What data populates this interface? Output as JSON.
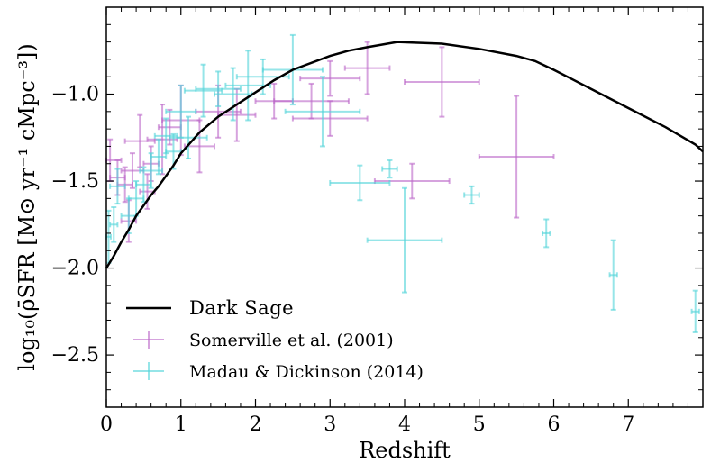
{
  "chart_data": {
    "type": "scatter",
    "xlabel": "Redshift",
    "ylabel": "log₁₀(ρ̄SFR [M⊙ yr⁻¹ cMpc⁻³])",
    "xlim": [
      0,
      8
    ],
    "ylim": [
      -2.8,
      -0.5
    ],
    "x_ticks": [
      "0",
      "1",
      "2",
      "3",
      "4",
      "5",
      "6",
      "7"
    ],
    "y_ticks": [
      "−1.0",
      "−1.5",
      "−2.0",
      "−2.5"
    ],
    "y_tick_values": [
      -1.0,
      -1.5,
      -2.0,
      -2.5
    ],
    "legend": {
      "position": "lower-left",
      "entries": [
        {
          "label": "Dark Sage",
          "kind": "line",
          "color": "#000000"
        },
        {
          "label": "Somerville et al. (2001)",
          "kind": "errorbar",
          "color": "#bb66c8"
        },
        {
          "label": "Madau & Dickinson (2014)",
          "kind": "errorbar",
          "color": "#50d4d9"
        }
      ]
    },
    "series": [
      {
        "name": "Dark Sage",
        "kind": "line",
        "color": "#000000",
        "points": [
          [
            0.0,
            -2.0
          ],
          [
            0.1,
            -1.93
          ],
          [
            0.2,
            -1.85
          ],
          [
            0.3,
            -1.78
          ],
          [
            0.4,
            -1.7
          ],
          [
            0.5,
            -1.64
          ],
          [
            0.6,
            -1.58
          ],
          [
            0.7,
            -1.53
          ],
          [
            0.8,
            -1.47
          ],
          [
            0.9,
            -1.41
          ],
          [
            1.0,
            -1.34
          ],
          [
            1.25,
            -1.22
          ],
          [
            1.5,
            -1.13
          ],
          [
            1.75,
            -1.06
          ],
          [
            2.0,
            -0.99
          ],
          [
            2.25,
            -0.92
          ],
          [
            2.5,
            -0.86
          ],
          [
            3.0,
            -0.78
          ],
          [
            3.25,
            -0.75
          ],
          [
            3.5,
            -0.73
          ],
          [
            3.9,
            -0.7
          ],
          [
            4.5,
            -0.71
          ],
          [
            5.0,
            -0.74
          ],
          [
            5.5,
            -0.78
          ],
          [
            5.75,
            -0.81
          ],
          [
            6.0,
            -0.86
          ],
          [
            6.5,
            -0.97
          ],
          [
            7.0,
            -1.08
          ],
          [
            7.5,
            -1.19
          ],
          [
            7.9,
            -1.29
          ],
          [
            8.0,
            -1.33
          ]
        ]
      },
      {
        "name": "Somerville et al. (2001)",
        "kind": "errorbar",
        "color": "#bb66c8",
        "points": [
          {
            "x": 0.05,
            "y": -1.38,
            "xerr": 0.15,
            "yerr": 0.12
          },
          {
            "x": 0.15,
            "y": -1.48,
            "xerr": 0.1,
            "yerr": 0.1
          },
          {
            "x": 0.25,
            "y": -1.52,
            "xerr": 0.1,
            "yerr": 0.1
          },
          {
            "x": 0.3,
            "y": -1.73,
            "xerr": 0.1,
            "yerr": 0.12
          },
          {
            "x": 0.35,
            "y": -1.44,
            "xerr": 0.15,
            "yerr": 0.1
          },
          {
            "x": 0.45,
            "y": -1.27,
            "xerr": 0.2,
            "yerr": 0.15
          },
          {
            "x": 0.55,
            "y": -1.56,
            "xerr": 0.1,
            "yerr": 0.1
          },
          {
            "x": 0.6,
            "y": -1.4,
            "xerr": 0.1,
            "yerr": 0.1
          },
          {
            "x": 0.75,
            "y": -1.26,
            "xerr": 0.2,
            "yerr": 0.2
          },
          {
            "x": 0.85,
            "y": -1.19,
            "xerr": 0.15,
            "yerr": 0.1
          },
          {
            "x": 1.0,
            "y": -1.15,
            "xerr": 0.25,
            "yerr": 0.2
          },
          {
            "x": 1.25,
            "y": -1.3,
            "xerr": 0.2,
            "yerr": 0.15
          },
          {
            "x": 1.5,
            "y": -1.1,
            "xerr": 0.3,
            "yerr": 0.15
          },
          {
            "x": 1.75,
            "y": -1.12,
            "xerr": 0.25,
            "yerr": 0.15
          },
          {
            "x": 2.25,
            "y": -1.04,
            "xerr": 0.25,
            "yerr": 0.1
          },
          {
            "x": 2.75,
            "y": -1.04,
            "xerr": 0.5,
            "yerr": 0.1
          },
          {
            "x": 3.0,
            "y": -0.91,
            "xerr": 0.4,
            "yerr": 0.1
          },
          {
            "x": 3.0,
            "y": -1.14,
            "xerr": 0.5,
            "yerr": 0.1
          },
          {
            "x": 3.5,
            "y": -0.85,
            "xerr": 0.3,
            "yerr": 0.15
          },
          {
            "x": 4.1,
            "y": -1.5,
            "xerr": 0.5,
            "yerr": 0.1
          },
          {
            "x": 4.5,
            "y": -0.93,
            "xerr": 0.5,
            "yerr": 0.2
          },
          {
            "x": 5.5,
            "y": -1.36,
            "xerr": 0.5,
            "yerr": 0.35
          }
        ]
      },
      {
        "name": "Madau & Dickinson (2014)",
        "kind": "errorbar",
        "color": "#50d4d9",
        "points": [
          {
            "x": 0.03,
            "y": -1.82,
            "xerr": 0.03,
            "yerr": 0.15
          },
          {
            "x": 0.1,
            "y": -1.75,
            "xerr": 0.05,
            "yerr": 0.1
          },
          {
            "x": 0.15,
            "y": -1.53,
            "xerr": 0.1,
            "yerr": 0.1
          },
          {
            "x": 0.3,
            "y": -1.7,
            "xerr": 0.1,
            "yerr": 0.1
          },
          {
            "x": 0.4,
            "y": -1.6,
            "xerr": 0.1,
            "yerr": 0.1
          },
          {
            "x": 0.5,
            "y": -1.52,
            "xerr": 0.1,
            "yerr": 0.1
          },
          {
            "x": 0.6,
            "y": -1.44,
            "xerr": 0.15,
            "yerr": 0.1
          },
          {
            "x": 0.7,
            "y": -1.36,
            "xerr": 0.1,
            "yerr": 0.1
          },
          {
            "x": 0.8,
            "y": -1.24,
            "xerr": 0.15,
            "yerr": 0.1
          },
          {
            "x": 0.9,
            "y": -1.33,
            "xerr": 0.1,
            "yerr": 0.1
          },
          {
            "x": 1.0,
            "y": -1.1,
            "xerr": 0.2,
            "yerr": 0.15
          },
          {
            "x": 1.1,
            "y": -1.25,
            "xerr": 0.25,
            "yerr": 0.12
          },
          {
            "x": 1.3,
            "y": -0.98,
            "xerr": 0.25,
            "yerr": 0.15
          },
          {
            "x": 1.5,
            "y": -0.97,
            "xerr": 0.3,
            "yerr": 0.1
          },
          {
            "x": 1.7,
            "y": -1.0,
            "xerr": 0.25,
            "yerr": 0.15
          },
          {
            "x": 1.9,
            "y": -0.95,
            "xerr": 0.3,
            "yerr": 0.2
          },
          {
            "x": 2.1,
            "y": -0.9,
            "xerr": 0.35,
            "yerr": 0.1
          },
          {
            "x": 2.5,
            "y": -0.86,
            "xerr": 0.4,
            "yerr": 0.2
          },
          {
            "x": 2.9,
            "y": -1.1,
            "xerr": 0.5,
            "yerr": 0.2
          },
          {
            "x": 3.4,
            "y": -1.51,
            "xerr": 0.4,
            "yerr": 0.1
          },
          {
            "x": 3.8,
            "y": -1.43,
            "xerr": 0.1,
            "yerr": 0.05
          },
          {
            "x": 4.0,
            "y": -1.84,
            "xerr": 0.5,
            "yerr": 0.3
          },
          {
            "x": 4.9,
            "y": -1.58,
            "xerr": 0.1,
            "yerr": 0.05
          },
          {
            "x": 5.9,
            "y": -1.8,
            "xerr": 0.05,
            "yerr": 0.08
          },
          {
            "x": 6.8,
            "y": -2.04,
            "xerr": 0.05,
            "yerr": 0.2
          },
          {
            "x": 7.9,
            "y": -2.25,
            "xerr": 0.05,
            "yerr": 0.12
          }
        ]
      }
    ]
  }
}
